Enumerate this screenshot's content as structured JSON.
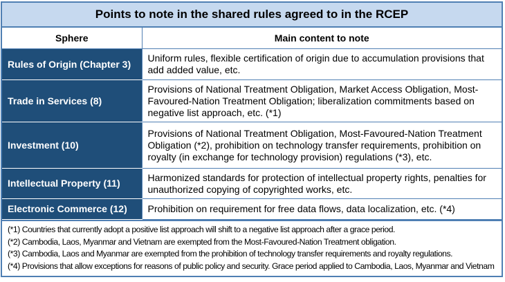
{
  "title": "Points to note in the shared rules agreed to in the RCEP",
  "headers": {
    "sphere": "Sphere",
    "content": "Main content to note"
  },
  "rows": [
    {
      "sphere": "Rules of Origin (Chapter 3)",
      "content": "Uniform rules, flexible certification of origin due to accumulation provisions that add added value, etc."
    },
    {
      "sphere": "Trade in Services (8)",
      "content": "Provisions of National Treatment Obligation, Market Access Obligation, Most-Favoured-Nation Treatment Obligation; liberalization commitments based on negative list approach, etc. (*1)"
    },
    {
      "sphere": "Investment (10)",
      "content": "Provisions of National Treatment Obligation, Most-Favoured-Nation Treatment Obligation (*2), prohibition on technology transfer requirements, prohibition on royalty (in exchange for technology provision) regulations (*3), etc."
    },
    {
      "sphere": "Intellectual Property (11)",
      "content": "Harmonized standards for protection of intellectual property rights, penalties for unauthorized copying of copyrighted works, etc."
    },
    {
      "sphere": "Electronic Commerce (12)",
      "content": "Prohibition on requirement for free data flows, data localization, etc. (*4)"
    }
  ],
  "notes": [
    "(*1) Countries that currently adopt a positive list approach will shift to a negative list approach after a grace period.",
    "(*2) Cambodia, Laos, Myanmar and Vietnam are exempted from the Most-Favoured-Nation Treatment obligation.",
    "(*3) Cambodia, Laos and Myanmar are exempted from the prohibition of technology transfer requirements and royalty regulations.",
    "(*4) Provisions that allow exceptions for reasons of public policy and security. Grace period applied to Cambodia, Laos, Myanmar and Vietnam"
  ],
  "colors": {
    "title_bg": "#c6d9ef",
    "sphere_bg": "#1f4e79",
    "border": "#4f7fb3"
  }
}
